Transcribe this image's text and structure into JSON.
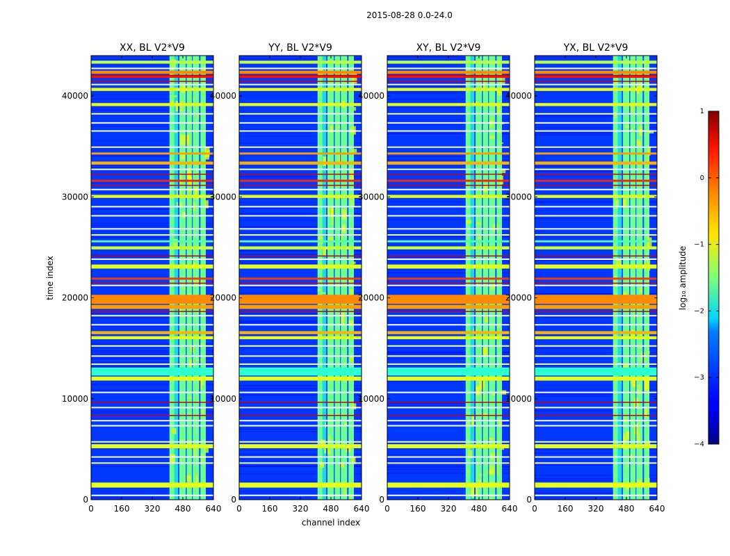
{
  "chart_data": {
    "type": "heatmap",
    "suptitle": "2015-08-28 0.0-24.0",
    "xlabel": "channel index",
    "ylabel": "time index",
    "xlim": [
      0,
      640
    ],
    "ylim": [
      0,
      44000
    ],
    "xticks": [
      0,
      160,
      320,
      480,
      640
    ],
    "yticks": [
      0,
      10000,
      20000,
      30000,
      40000
    ],
    "panels": [
      {
        "name": "XX",
        "title": "XX, BL V2*V9"
      },
      {
        "name": "YY",
        "title": "YY, BL V2*V9"
      },
      {
        "name": "XY",
        "title": "XY, BL V2*V9"
      },
      {
        "name": "YX",
        "title": "YX, BL V2*V9"
      }
    ],
    "colorbar": {
      "label": "log₁₀ amplitude",
      "range": [
        -4,
        1
      ],
      "ticks": [
        -4,
        -3,
        -2,
        -1,
        0,
        1
      ],
      "tick_labels": [
        "−4",
        "−3",
        "−2",
        "−1",
        "0",
        "1"
      ],
      "colormap": "jet"
    },
    "rfi_band": {
      "channel_start": 410,
      "channel_end": 600,
      "level": -1.6
    },
    "rfi_gaps": [
      [
        455,
        462
      ],
      [
        495,
        500
      ],
      [
        528,
        532
      ],
      [
        565,
        572
      ]
    ],
    "quiet_band_channel_range": [
      435,
      455
    ],
    "horizontal_flags": [
      {
        "t_start": 1200,
        "t_end": 1700,
        "level": -1.0
      },
      {
        "t_start": 5100,
        "t_end": 5500,
        "level": -1.0
      },
      {
        "t_start": 11800,
        "t_end": 12200,
        "level": -1.0
      },
      {
        "t_start": 12300,
        "t_end": 13100,
        "level": -1.9
      },
      {
        "t_start": 15900,
        "t_end": 16200,
        "level": -1.0
      },
      {
        "t_start": 16400,
        "t_end": 16700,
        "level": -0.5
      },
      {
        "t_start": 18900,
        "t_end": 19300,
        "level": -0.4
      },
      {
        "t_start": 19400,
        "t_end": 20300,
        "level": -0.3
      },
      {
        "t_start": 21800,
        "t_end": 22000,
        "level": 0.1
      },
      {
        "t_start": 22900,
        "t_end": 23300,
        "level": -1.0
      },
      {
        "t_start": 24800,
        "t_end": 25100,
        "level": -1.1
      },
      {
        "t_start": 25500,
        "t_end": 25700,
        "level": -1.7
      },
      {
        "t_start": 29900,
        "t_end": 30200,
        "level": -1.0
      },
      {
        "t_start": 31500,
        "t_end": 31700,
        "level": 0.2
      },
      {
        "t_start": 33200,
        "t_end": 33500,
        "level": -0.5
      },
      {
        "t_start": 34200,
        "t_end": 34400,
        "level": -0.4
      },
      {
        "t_start": 39000,
        "t_end": 39300,
        "level": -1.0
      },
      {
        "t_start": 40500,
        "t_end": 40800,
        "level": -1.0
      },
      {
        "t_start": 41800,
        "t_end": 42000,
        "level": 0.3
      },
      {
        "t_start": 42200,
        "t_end": 42500,
        "level": -0.3
      },
      {
        "t_start": 43200,
        "t_end": 43500,
        "level": -1.2
      }
    ],
    "white_gaps": [
      500,
      3700,
      4300,
      5800,
      7400,
      7900,
      9200,
      10700,
      13500,
      14300,
      15300,
      17400,
      18300,
      21300,
      23900,
      26300,
      26900,
      28200,
      29100,
      30800,
      32800,
      35000,
      36600,
      37400,
      38300,
      41200,
      42800
    ],
    "red_lines": [
      8400,
      9700,
      18700,
      21500,
      24200,
      31200,
      32300,
      41500,
      42100
    ],
    "background_level": -3.1
  }
}
